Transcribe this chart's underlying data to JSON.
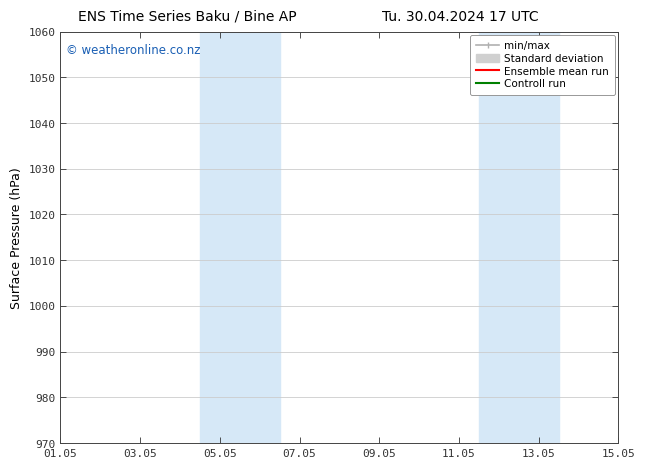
{
  "title_left": "ENS Time Series Baku / Bine AP",
  "title_right": "Tu. 30.04.2024 17 UTC",
  "ylabel": "Surface Pressure (hPa)",
  "ylim": [
    970,
    1060
  ],
  "yticks": [
    970,
    980,
    990,
    1000,
    1010,
    1020,
    1030,
    1040,
    1050,
    1060
  ],
  "xtick_labels": [
    "01.05",
    "03.05",
    "05.05",
    "07.05",
    "09.05",
    "11.05",
    "13.05",
    "15.05"
  ],
  "xtick_positions": [
    0,
    2,
    4,
    6,
    8,
    10,
    12,
    14
  ],
  "shaded_bands": [
    {
      "x_start": 3.5,
      "x_end": 5.5,
      "color": "#d6e8f7"
    },
    {
      "x_start": 10.5,
      "x_end": 12.5,
      "color": "#d6e8f7"
    }
  ],
  "watermark": "© weatheronline.co.nz",
  "watermark_color": "#1a5fb4",
  "watermark_fontsize": 8.5,
  "legend_entries": [
    {
      "label": "min/max",
      "color": "#b0b0b0",
      "lw": 1.2
    },
    {
      "label": "Standard deviation",
      "color": "#d0d0d0",
      "lw": 6
    },
    {
      "label": "Ensemble mean run",
      "color": "red",
      "lw": 1.5
    },
    {
      "label": "Controll run",
      "color": "green",
      "lw": 1.5
    }
  ],
  "bg_color": "#ffffff",
  "plot_bg_color": "#ffffff",
  "grid_color": "#cccccc",
  "title_fontsize": 10,
  "axis_label_fontsize": 9,
  "tick_fontsize": 8
}
